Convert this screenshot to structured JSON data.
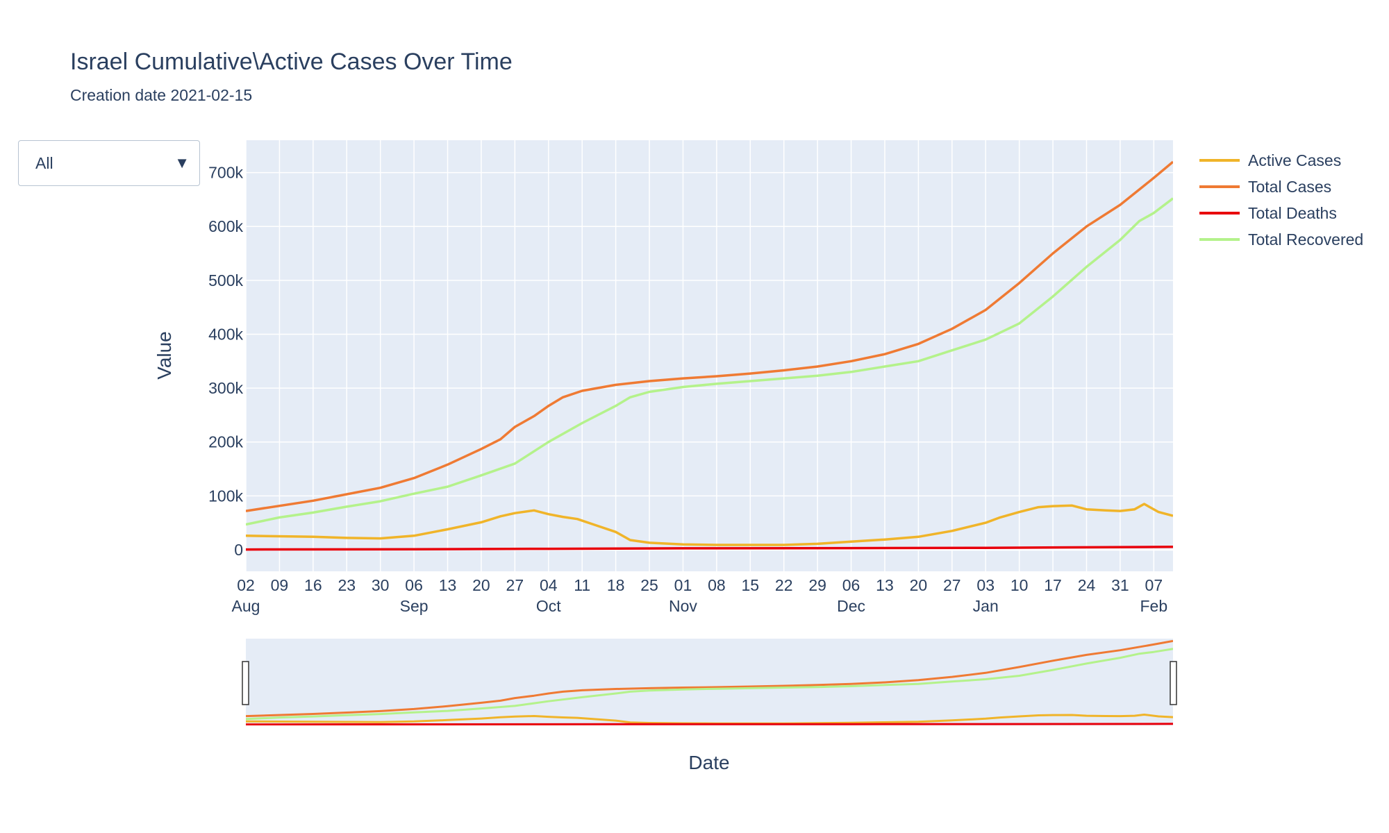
{
  "header": {
    "title": "Israel Cumulative\\Active Cases Over Time",
    "subtitle": "Creation date 2021-02-15"
  },
  "dropdown": {
    "selected": "All",
    "caret": "▼"
  },
  "colors": {
    "plot_bg": "#e5ecf6",
    "grid": "#ffffff",
    "text": "#2a3f5f"
  },
  "chart_data": {
    "type": "line",
    "xlabel": "Date",
    "ylabel": "Value",
    "xlim": [
      "2020-08-02",
      "2021-02-11"
    ],
    "ylim": [
      -40000,
      760000
    ],
    "yticks": [
      0,
      100000,
      200000,
      300000,
      400000,
      500000,
      600000,
      700000
    ],
    "ytick_labels": [
      "0",
      "100k",
      "200k",
      "300k",
      "400k",
      "500k",
      "600k",
      "700k"
    ],
    "xticks": [
      {
        "date": "2020-08-02",
        "label": "02",
        "month": "Aug"
      },
      {
        "date": "2020-08-09",
        "label": "09",
        "month": ""
      },
      {
        "date": "2020-08-16",
        "label": "16",
        "month": ""
      },
      {
        "date": "2020-08-23",
        "label": "23",
        "month": ""
      },
      {
        "date": "2020-08-30",
        "label": "30",
        "month": ""
      },
      {
        "date": "2020-09-06",
        "label": "06",
        "month": "Sep"
      },
      {
        "date": "2020-09-13",
        "label": "13",
        "month": ""
      },
      {
        "date": "2020-09-20",
        "label": "20",
        "month": ""
      },
      {
        "date": "2020-09-27",
        "label": "27",
        "month": ""
      },
      {
        "date": "2020-10-04",
        "label": "04",
        "month": "Oct"
      },
      {
        "date": "2020-10-11",
        "label": "11",
        "month": ""
      },
      {
        "date": "2020-10-18",
        "label": "18",
        "month": ""
      },
      {
        "date": "2020-10-25",
        "label": "25",
        "month": ""
      },
      {
        "date": "2020-11-01",
        "label": "01",
        "month": "Nov"
      },
      {
        "date": "2020-11-08",
        "label": "08",
        "month": ""
      },
      {
        "date": "2020-11-15",
        "label": "15",
        "month": ""
      },
      {
        "date": "2020-11-22",
        "label": "22",
        "month": ""
      },
      {
        "date": "2020-11-29",
        "label": "29",
        "month": ""
      },
      {
        "date": "2020-12-06",
        "label": "06",
        "month": "Dec"
      },
      {
        "date": "2020-12-13",
        "label": "13",
        "month": ""
      },
      {
        "date": "2020-12-20",
        "label": "20",
        "month": ""
      },
      {
        "date": "2020-12-27",
        "label": "27",
        "month": ""
      },
      {
        "date": "2021-01-03",
        "label": "03",
        "month": "Jan"
      },
      {
        "date": "2021-01-10",
        "label": "10",
        "month": ""
      },
      {
        "date": "2021-01-17",
        "label": "17",
        "month": ""
      },
      {
        "date": "2021-01-24",
        "label": "24",
        "month": ""
      },
      {
        "date": "2021-01-31",
        "label": "31",
        "month": ""
      },
      {
        "date": "2021-02-07",
        "label": "07",
        "month": "Feb"
      }
    ],
    "legend_position": "top-right",
    "grid": true,
    "rangeslider": true,
    "series": [
      {
        "name": "Active Cases",
        "color": "#f0b429",
        "x": [
          "2020-08-02",
          "2020-08-16",
          "2020-08-23",
          "2020-08-30",
          "2020-09-06",
          "2020-09-13",
          "2020-09-20",
          "2020-09-24",
          "2020-09-27",
          "2020-10-01",
          "2020-10-04",
          "2020-10-07",
          "2020-10-10",
          "2020-10-14",
          "2020-10-18",
          "2020-10-21",
          "2020-10-25",
          "2020-11-01",
          "2020-11-08",
          "2020-11-15",
          "2020-11-22",
          "2020-11-29",
          "2020-12-06",
          "2020-12-13",
          "2020-12-20",
          "2020-12-27",
          "2021-01-03",
          "2021-01-06",
          "2021-01-10",
          "2021-01-14",
          "2021-01-17",
          "2021-01-21",
          "2021-01-24",
          "2021-01-28",
          "2021-01-31",
          "2021-02-03",
          "2021-02-05",
          "2021-02-08",
          "2021-02-11"
        ],
        "y": [
          26000,
          24000,
          22000,
          21000,
          26000,
          38000,
          51000,
          62000,
          68000,
          73000,
          66000,
          61000,
          57000,
          45000,
          33000,
          18000,
          13000,
          10000,
          9000,
          9000,
          9000,
          11000,
          15000,
          19000,
          24000,
          35000,
          50000,
          60000,
          70000,
          79000,
          81000,
          82000,
          75000,
          73000,
          72000,
          75000,
          85000,
          70000,
          63000
        ]
      },
      {
        "name": "Total Cases",
        "color": "#ef7a33",
        "x": [
          "2020-08-02",
          "2020-08-16",
          "2020-08-23",
          "2020-08-30",
          "2020-09-06",
          "2020-09-13",
          "2020-09-20",
          "2020-09-24",
          "2020-09-27",
          "2020-10-01",
          "2020-10-04",
          "2020-10-07",
          "2020-10-11",
          "2020-10-18",
          "2020-10-25",
          "2020-11-01",
          "2020-11-08",
          "2020-11-15",
          "2020-11-22",
          "2020-11-29",
          "2020-12-06",
          "2020-12-13",
          "2020-12-20",
          "2020-12-27",
          "2021-01-03",
          "2021-01-10",
          "2021-01-17",
          "2021-01-24",
          "2021-01-31",
          "2021-02-07",
          "2021-02-11"
        ],
        "y": [
          72000,
          91000,
          103000,
          115000,
          133000,
          158000,
          187000,
          205000,
          228000,
          248000,
          267000,
          283000,
          295000,
          306000,
          313000,
          318000,
          322000,
          327000,
          333000,
          340000,
          350000,
          363000,
          382000,
          410000,
          445000,
          495000,
          550000,
          600000,
          640000,
          690000,
          720000
        ]
      },
      {
        "name": "Total Deaths",
        "color": "#e8000b",
        "x": [
          "2020-08-02",
          "2020-09-06",
          "2020-10-04",
          "2020-11-01",
          "2020-12-06",
          "2021-01-03",
          "2021-02-11"
        ],
        "y": [
          500,
          1000,
          1800,
          2700,
          3000,
          3600,
          5300
        ]
      },
      {
        "name": "Total Recovered",
        "color": "#b4f28b",
        "x": [
          "2020-08-02",
          "2020-08-09",
          "2020-08-16",
          "2020-08-23",
          "2020-08-30",
          "2020-09-06",
          "2020-09-13",
          "2020-09-20",
          "2020-09-27",
          "2020-10-04",
          "2020-10-11",
          "2020-10-18",
          "2020-10-21",
          "2020-10-25",
          "2020-11-01",
          "2020-11-08",
          "2020-11-15",
          "2020-11-22",
          "2020-11-29",
          "2020-12-06",
          "2020-12-13",
          "2020-12-20",
          "2020-12-27",
          "2021-01-03",
          "2021-01-10",
          "2021-01-17",
          "2021-01-24",
          "2021-01-31",
          "2021-02-04",
          "2021-02-07",
          "2021-02-11"
        ],
        "y": [
          47000,
          60000,
          69000,
          80000,
          90000,
          104000,
          117000,
          138000,
          160000,
          200000,
          235000,
          267000,
          283000,
          293000,
          302000,
          308000,
          313000,
          318000,
          323000,
          330000,
          340000,
          350000,
          370000,
          390000,
          420000,
          470000,
          525000,
          575000,
          610000,
          625000,
          652000
        ]
      }
    ]
  }
}
